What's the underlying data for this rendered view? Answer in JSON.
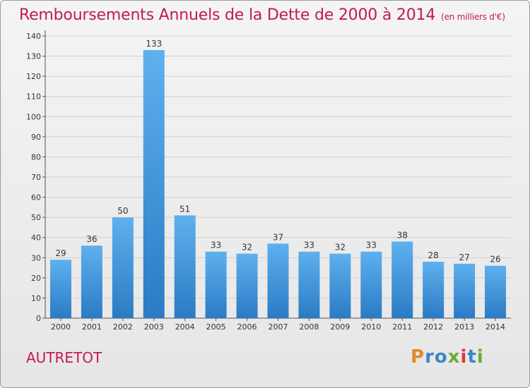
{
  "title": "Remboursements Annuels de la Dette de 2000 à 2014",
  "subtitle": "(en milliers d'€)",
  "town": "AUTRETOT",
  "logo": {
    "letters": [
      "P",
      "r",
      "o",
      "x",
      "i",
      "t",
      "i"
    ],
    "colors": [
      "#e0892a",
      "#3a87c9",
      "#3a87c9",
      "#6cab2f",
      "#d93a3a",
      "#3a87c9",
      "#6cab2f"
    ]
  },
  "colors": {
    "title": "#c2185b",
    "bar_top": "#5fb0ee",
    "bar_bottom": "#2a7bc4",
    "grid": "#d0d0d0"
  },
  "chart_data": {
    "type": "bar",
    "categories": [
      "2000",
      "2001",
      "2002",
      "2003",
      "2004",
      "2005",
      "2006",
      "2007",
      "2008",
      "2009",
      "2010",
      "2011",
      "2012",
      "2013",
      "2014"
    ],
    "values": [
      29,
      36,
      50,
      133,
      51,
      33,
      32,
      37,
      33,
      32,
      33,
      38,
      28,
      27,
      26
    ],
    "ylim": [
      0,
      140
    ],
    "yticks": [
      0,
      10,
      20,
      30,
      40,
      50,
      60,
      70,
      80,
      90,
      100,
      110,
      120,
      130,
      140
    ],
    "grid": true
  }
}
